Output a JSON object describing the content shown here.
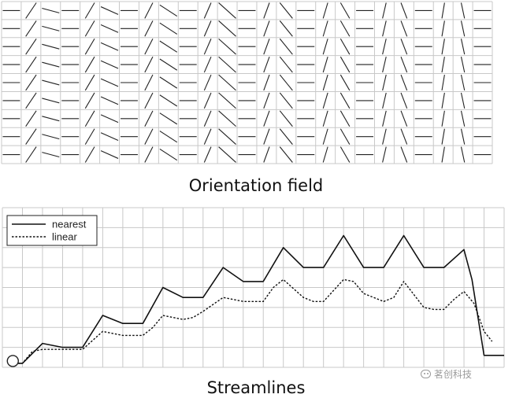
{
  "panels": {
    "orientation_field": {
      "caption": "Orientation field",
      "rows": 9,
      "columns": 25,
      "column_pattern": [
        "horizontal",
        "rising",
        "falling"
      ],
      "rising_angle_start_deg": 56,
      "rising_angle_end_deg": 84,
      "falling_angle_start_deg": 15,
      "falling_angle_end_deg": 78
    },
    "streamlines": {
      "caption": "Streamlines",
      "legend_position": "top-left",
      "legend": [
        {
          "label": "nearest",
          "style": "solid"
        },
        {
          "label": "linear",
          "style": "dashed"
        }
      ],
      "grid": {
        "columns": 25,
        "rows": 8
      },
      "x_range": [
        0,
        25
      ],
      "y_range": [
        0,
        8
      ],
      "start_marker": "circle",
      "series": [
        {
          "name": "nearest",
          "x": [
            0.6,
            1,
            2,
            3,
            4,
            5,
            6,
            7,
            8,
            9,
            10,
            11,
            12,
            13,
            14,
            15,
            16,
            17,
            18,
            19,
            20,
            21,
            22,
            23,
            23.4,
            24,
            25
          ],
          "y": [
            0.2,
            0.2,
            1.2,
            1.0,
            1.0,
            2.6,
            2.2,
            2.2,
            4.0,
            3.5,
            3.5,
            5.0,
            4.3,
            4.3,
            6.0,
            5.0,
            5.0,
            6.6,
            5.0,
            5.0,
            6.6,
            5.0,
            5.0,
            5.9,
            4.4,
            0.6,
            0.6
          ]
        },
        {
          "name": "linear",
          "x": [
            0.6,
            1,
            1.5,
            2,
            3,
            4,
            5,
            5.5,
            6,
            7,
            7.5,
            8,
            9,
            9.5,
            10,
            11,
            11.5,
            12,
            13,
            13.5,
            14,
            15,
            15.5,
            16,
            17,
            17.5,
            18,
            19,
            19.5,
            20,
            21,
            21.5,
            22,
            22.5,
            23,
            23.5,
            24,
            24.4
          ],
          "y": [
            0.2,
            0.2,
            0.8,
            0.9,
            0.9,
            0.9,
            1.8,
            1.7,
            1.6,
            1.6,
            2.0,
            2.6,
            2.4,
            2.5,
            2.8,
            3.5,
            3.4,
            3.3,
            3.3,
            4.0,
            4.4,
            3.5,
            3.3,
            3.3,
            4.4,
            4.3,
            3.7,
            3.3,
            3.5,
            4.3,
            3.0,
            2.9,
            2.9,
            3.4,
            3.8,
            3.2,
            1.8,
            1.3
          ]
        }
      ]
    }
  },
  "watermark": {
    "text": "茗创科技",
    "icon": "wechat-icon"
  }
}
